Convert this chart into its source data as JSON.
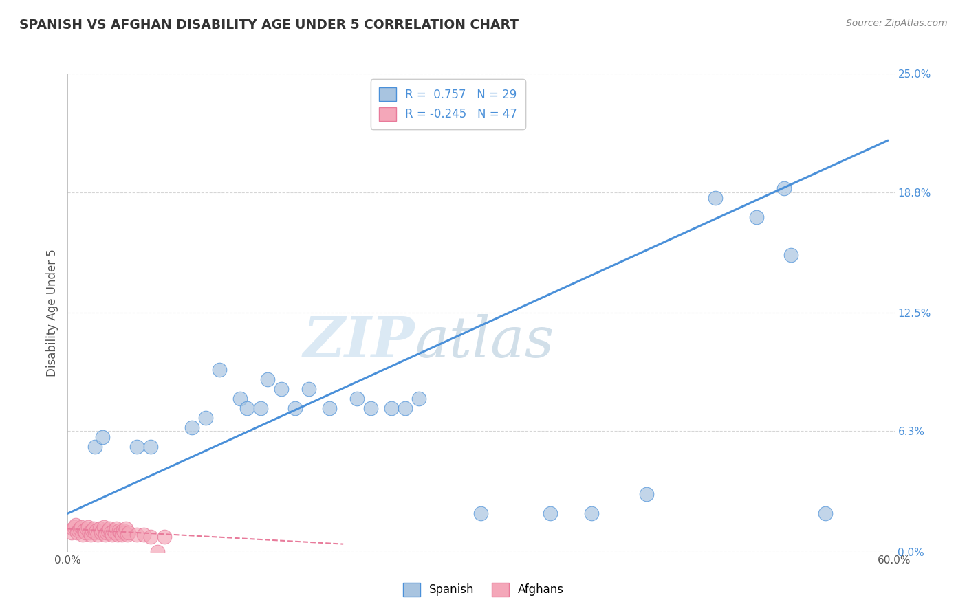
{
  "title": "SPANISH VS AFGHAN DISABILITY AGE UNDER 5 CORRELATION CHART",
  "source": "Source: ZipAtlas.com",
  "ylabel": "Disability Age Under 5",
  "xlabel": "",
  "background_color": "#ffffff",
  "watermark_zip": "ZIP",
  "watermark_atlas": "atlas",
  "xlim": [
    0.0,
    0.6
  ],
  "ylim": [
    0.0,
    0.25
  ],
  "ytick_values": [
    0.0,
    0.063,
    0.125,
    0.188,
    0.25
  ],
  "xtick_values": [
    0.0,
    0.6
  ],
  "gridline_color": "#cccccc",
  "spanish_color": "#a8c4e0",
  "afghan_color": "#f4a7b9",
  "spanish_line_color": "#4a90d9",
  "afghan_line_color": "#e87a9a",
  "legend_R_spanish": "0.757",
  "legend_N_spanish": "29",
  "legend_R_afghan": "-0.245",
  "legend_N_afghan": "47",
  "spanish_scatter": [
    [
      0.02,
      0.055
    ],
    [
      0.025,
      0.06
    ],
    [
      0.05,
      0.055
    ],
    [
      0.06,
      0.055
    ],
    [
      0.09,
      0.065
    ],
    [
      0.1,
      0.07
    ],
    [
      0.11,
      0.095
    ],
    [
      0.125,
      0.08
    ],
    [
      0.13,
      0.075
    ],
    [
      0.14,
      0.075
    ],
    [
      0.145,
      0.09
    ],
    [
      0.155,
      0.085
    ],
    [
      0.165,
      0.075
    ],
    [
      0.175,
      0.085
    ],
    [
      0.19,
      0.075
    ],
    [
      0.21,
      0.08
    ],
    [
      0.22,
      0.075
    ],
    [
      0.235,
      0.075
    ],
    [
      0.245,
      0.075
    ],
    [
      0.255,
      0.08
    ],
    [
      0.3,
      0.02
    ],
    [
      0.35,
      0.02
    ],
    [
      0.38,
      0.02
    ],
    [
      0.42,
      0.03
    ],
    [
      0.47,
      0.185
    ],
    [
      0.52,
      0.19
    ],
    [
      0.525,
      0.155
    ],
    [
      0.5,
      0.175
    ],
    [
      0.55,
      0.02
    ]
  ],
  "afghan_scatter": [
    [
      0.003,
      0.01
    ],
    [
      0.004,
      0.012
    ],
    [
      0.005,
      0.013
    ],
    [
      0.006,
      0.014
    ],
    [
      0.007,
      0.01
    ],
    [
      0.008,
      0.011
    ],
    [
      0.009,
      0.012
    ],
    [
      0.01,
      0.013
    ],
    [
      0.011,
      0.009
    ],
    [
      0.012,
      0.011
    ],
    [
      0.013,
      0.01
    ],
    [
      0.014,
      0.012
    ],
    [
      0.015,
      0.013
    ],
    [
      0.016,
      0.01
    ],
    [
      0.017,
      0.009
    ],
    [
      0.018,
      0.011
    ],
    [
      0.019,
      0.012
    ],
    [
      0.02,
      0.01
    ],
    [
      0.021,
      0.011
    ],
    [
      0.022,
      0.009
    ],
    [
      0.023,
      0.012
    ],
    [
      0.024,
      0.01
    ],
    [
      0.025,
      0.011
    ],
    [
      0.026,
      0.013
    ],
    [
      0.027,
      0.009
    ],
    [
      0.028,
      0.01
    ],
    [
      0.029,
      0.011
    ],
    [
      0.03,
      0.012
    ],
    [
      0.031,
      0.01
    ],
    [
      0.032,
      0.009
    ],
    [
      0.033,
      0.011
    ],
    [
      0.034,
      0.01
    ],
    [
      0.035,
      0.012
    ],
    [
      0.036,
      0.009
    ],
    [
      0.037,
      0.011
    ],
    [
      0.038,
      0.01
    ],
    [
      0.039,
      0.009
    ],
    [
      0.04,
      0.011
    ],
    [
      0.041,
      0.01
    ],
    [
      0.042,
      0.012
    ],
    [
      0.043,
      0.009
    ],
    [
      0.044,
      0.01
    ],
    [
      0.05,
      0.009
    ],
    [
      0.055,
      0.009
    ],
    [
      0.06,
      0.008
    ],
    [
      0.065,
      0.0
    ],
    [
      0.07,
      0.008
    ]
  ],
  "spanish_trendline_x": [
    0.0,
    0.595
  ],
  "spanish_trendline_y": [
    0.02,
    0.215
  ],
  "afghan_trendline_x": [
    0.0,
    0.2
  ],
  "afghan_trendline_y": [
    0.012,
    0.004
  ]
}
